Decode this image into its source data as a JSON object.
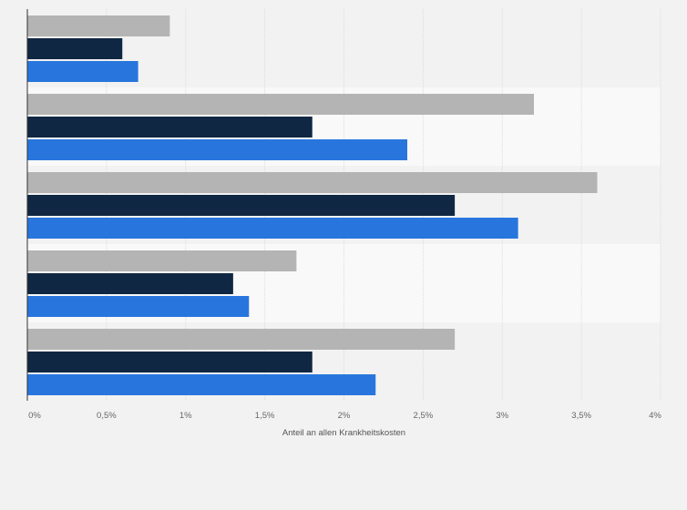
{
  "chart_data": {
    "type": "bar",
    "orientation": "horizontal",
    "categories": [
      "",
      "",
      "",
      "",
      ""
    ],
    "series": [
      {
        "values": [
          0.9,
          3.2,
          3.6,
          1.7,
          2.7
        ],
        "color": "#b4b4b4"
      },
      {
        "values": [
          0.6,
          1.8,
          2.7,
          1.3,
          1.8
        ],
        "color": "#0f2742"
      },
      {
        "values": [
          0.7,
          2.4,
          3.1,
          1.4,
          2.2
        ],
        "color": "#2876dd"
      }
    ],
    "xlim": [
      0,
      4
    ],
    "xticks": [
      0,
      0.5,
      1,
      1.5,
      2,
      2.5,
      3,
      3.5,
      4
    ],
    "xtick_labels": [
      "0%",
      "0,5%",
      "1%",
      "1,5%",
      "2%",
      "2,5%",
      "3%",
      "3,5%",
      "4%"
    ],
    "xlabel": "Anteil an allen Krankheitskosten",
    "ylabel": "",
    "title": "",
    "grid": true,
    "legend": "none"
  },
  "colors": {
    "background": "#f2f2f2",
    "band_alternate": "#f9f9f9",
    "gridline": "#dcdcdc",
    "axis": "#333333"
  }
}
